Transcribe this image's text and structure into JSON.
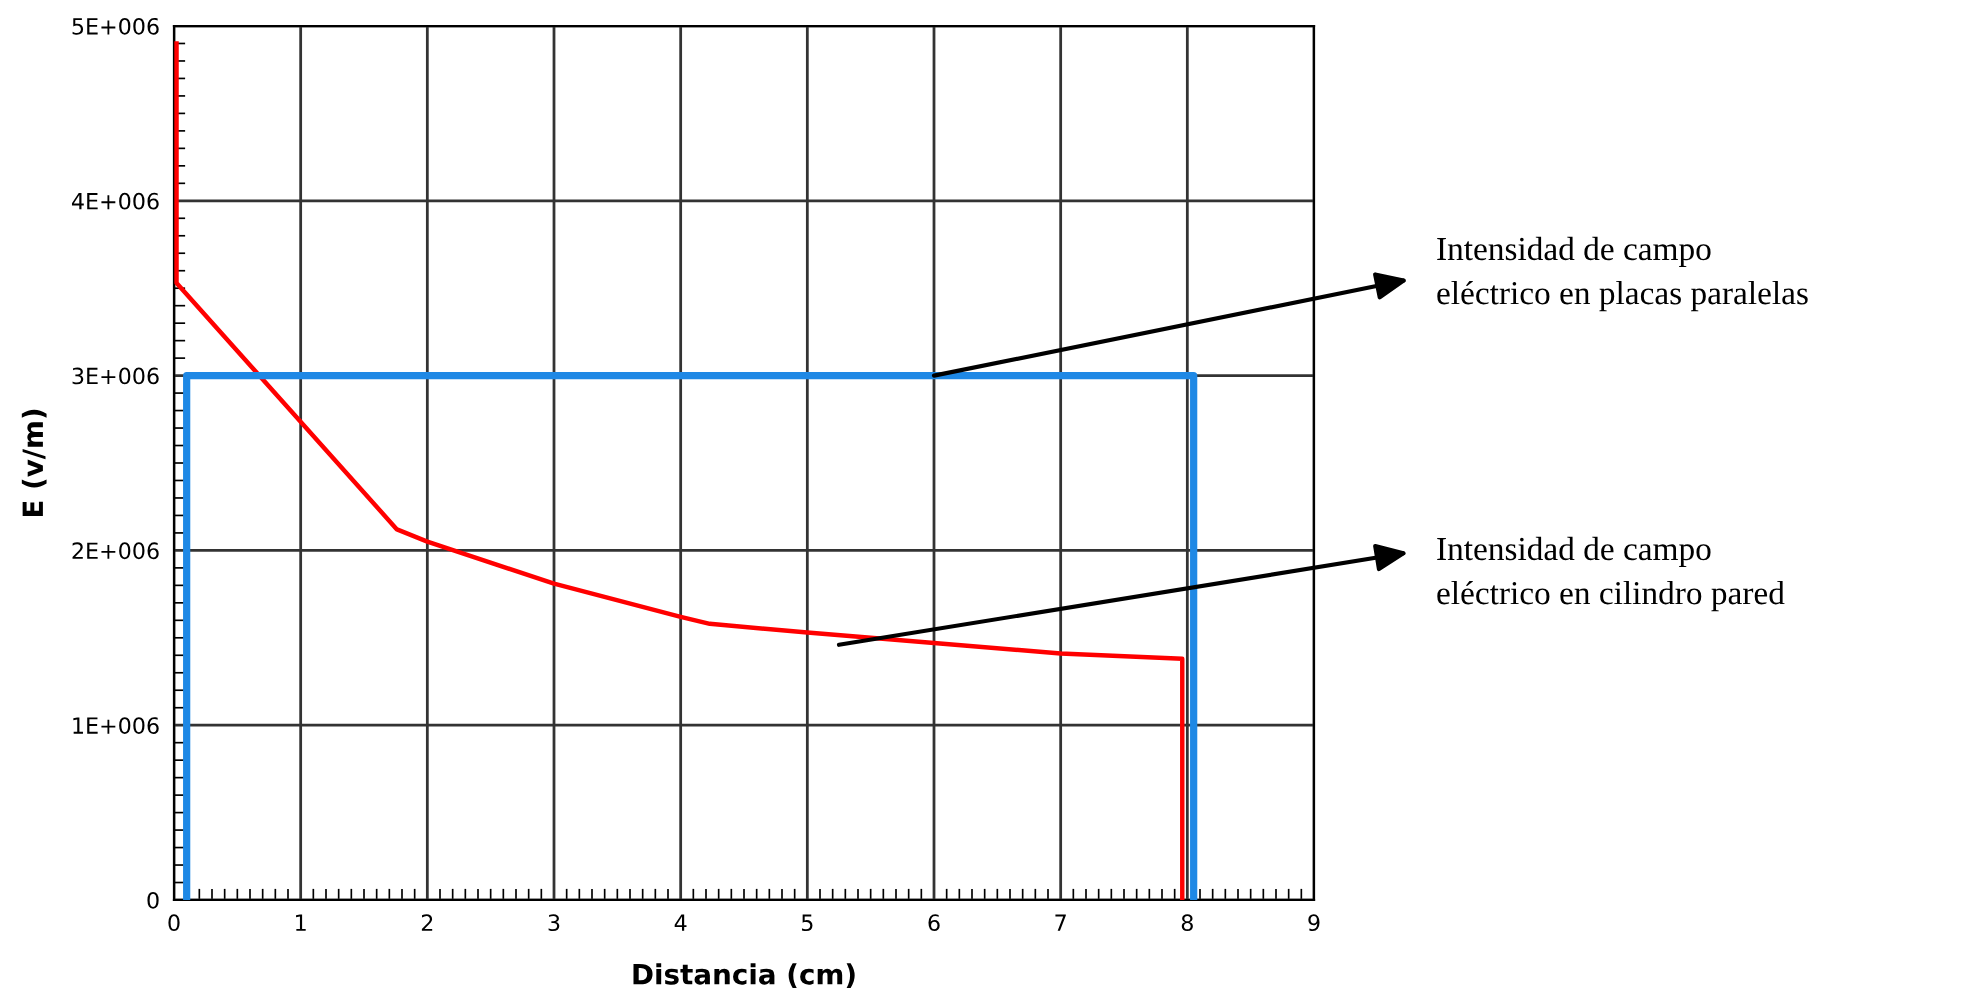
{
  "chart_data": {
    "type": "line",
    "xlabel": "Distancia (cm)",
    "ylabel": "E (v/m)",
    "xlim": [
      0,
      9
    ],
    "xticks": [
      0,
      1,
      2,
      3,
      4,
      5,
      6,
      7,
      8,
      9
    ],
    "ylim": [
      0,
      5000000
    ],
    "yticks": [
      {
        "value": 0,
        "label": "0"
      },
      {
        "value": 1000000,
        "label": "1E+006"
      },
      {
        "value": 2000000,
        "label": "2E+006"
      },
      {
        "value": 3000000,
        "label": "3E+006"
      },
      {
        "value": 4000000,
        "label": "4E+006"
      },
      {
        "value": 5000000,
        "label": "5E+006"
      }
    ],
    "grid": true,
    "legend": false,
    "series": [
      {
        "color": "#ff0000",
        "x": [
          0.02,
          0.02,
          1.76,
          2,
          3,
          4,
          4.23,
          5,
          6,
          7,
          7.96,
          7.96
        ],
        "values": [
          4900000,
          3530000,
          2120000,
          2050000,
          1810000,
          1620000,
          1580000,
          1530000,
          1470000,
          1410000,
          1380000,
          0
        ]
      },
      {
        "color": "#1e88e5",
        "x": [
          0.1,
          0.1,
          8.05,
          8.05
        ],
        "values": [
          0,
          3000000,
          3000000,
          0
        ]
      }
    ],
    "annotations": [
      {
        "text": "Intensidad de campo\neléctrico en placas paralelas",
        "x": 6,
        "y": 3000000
      },
      {
        "text": "Intensidad de campo\neléctrico en cilindro pared",
        "x": 5.25,
        "y": 1460000
      }
    ]
  }
}
